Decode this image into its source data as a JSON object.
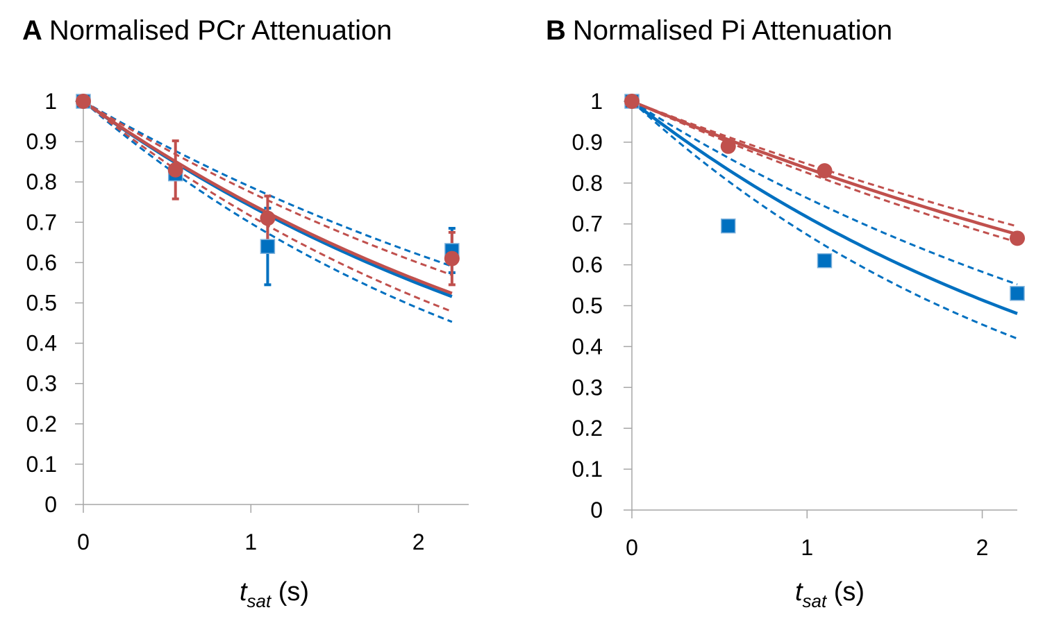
{
  "chart_data": [
    {
      "panel_letter": "A",
      "title": "Normalised PCr Attenuation",
      "type": "scatter",
      "xlabel_var": "t",
      "xlabel_sub": "sat",
      "xlabel_unit": "(s)",
      "xlim": [
        0,
        2.3
      ],
      "ylim": [
        0,
        1
      ],
      "xticks": [
        "0",
        "1",
        "2"
      ],
      "yticks": [
        "0",
        "0.1",
        "0.2",
        "0.3",
        "0.4",
        "0.5",
        "0.6",
        "0.7",
        "0.8",
        "0.9",
        "1"
      ],
      "colors": {
        "blue": "#0070C0",
        "red": "#C0504D"
      },
      "series": [
        {
          "name": "blue-data",
          "marker": "square",
          "color": "#0070C0",
          "x": [
            0,
            0.55,
            1.1,
            2.2
          ],
          "y": [
            1.0,
            0.82,
            0.64,
            0.63
          ],
          "err": [
            0,
            0,
            0.095,
            0.055
          ]
        },
        {
          "name": "red-data",
          "marker": "circle",
          "color": "#C0504D",
          "x": [
            0,
            0.55,
            1.1,
            2.2
          ],
          "y": [
            1.0,
            0.83,
            0.71,
            0.61
          ],
          "err": [
            0,
            0.072,
            0.055,
            0.065
          ]
        }
      ],
      "fits": [
        {
          "name": "blue-fit",
          "color": "#0070C0",
          "style": "solid",
          "k": 0.301
        },
        {
          "name": "red-fit",
          "color": "#C0504D",
          "style": "solid",
          "k": 0.294
        },
        {
          "name": "blue-fit-upper",
          "color": "#0070C0",
          "style": "dashed",
          "k": 0.239
        },
        {
          "name": "blue-fit-lower",
          "color": "#0070C0",
          "style": "dashed",
          "k": 0.36
        },
        {
          "name": "red-fit-upper",
          "color": "#C0504D",
          "style": "dashed",
          "k": 0.256
        },
        {
          "name": "red-fit-lower",
          "color": "#C0504D",
          "style": "dashed",
          "k": 0.335
        }
      ]
    },
    {
      "panel_letter": "B",
      "title": "Normalised Pi Attenuation",
      "type": "scatter",
      "xlabel_var": "t",
      "xlabel_sub": "sat",
      "xlabel_unit": "(s)",
      "xlim": [
        0,
        2.2
      ],
      "ylim": [
        0,
        1
      ],
      "xticks": [
        "0",
        "1",
        "2"
      ],
      "yticks": [
        "0",
        "0.1",
        "0.2",
        "0.3",
        "0.4",
        "0.5",
        "0.6",
        "0.7",
        "0.8",
        "0.9",
        "1"
      ],
      "colors": {
        "blue": "#0070C0",
        "red": "#C0504D"
      },
      "series": [
        {
          "name": "blue-data",
          "marker": "square",
          "color": "#0070C0",
          "x": [
            0,
            0.55,
            1.1,
            2.2
          ],
          "y": [
            1.0,
            0.695,
            0.61,
            0.53
          ],
          "err": [
            0,
            0,
            0,
            0
          ]
        },
        {
          "name": "red-data",
          "marker": "circle",
          "color": "#C0504D",
          "x": [
            0,
            0.55,
            1.1,
            2.2
          ],
          "y": [
            1.0,
            0.89,
            0.83,
            0.665
          ],
          "err": [
            0,
            0,
            0,
            0
          ]
        }
      ],
      "fits": [
        {
          "name": "blue-fit",
          "color": "#0070C0",
          "style": "solid",
          "k": 0.333
        },
        {
          "name": "red-fit",
          "color": "#C0504D",
          "style": "solid",
          "k": 0.179
        },
        {
          "name": "blue-fit-upper",
          "color": "#0070C0",
          "style": "dashed",
          "k": 0.27
        },
        {
          "name": "blue-fit-lower",
          "color": "#0070C0",
          "style": "dashed",
          "k": 0.395
        },
        {
          "name": "red-fit-upper",
          "color": "#C0504D",
          "style": "dashed",
          "k": 0.166
        },
        {
          "name": "red-fit-lower",
          "color": "#C0504D",
          "style": "dashed",
          "k": 0.192
        }
      ]
    }
  ]
}
